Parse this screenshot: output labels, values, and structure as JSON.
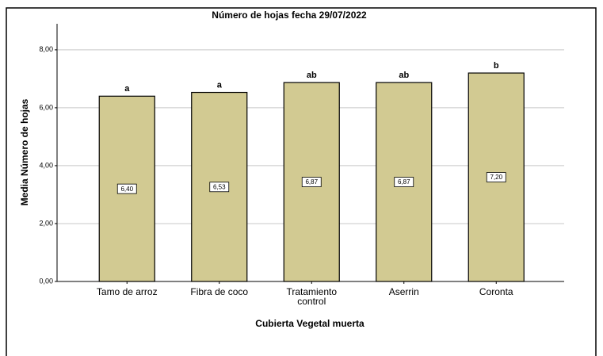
{
  "chart_data": {
    "type": "bar",
    "title": "Número de hojas fecha 29/07/2022",
    "x_label": "Cubierta Vegetal muerta",
    "y_label": "Media Número de hojas",
    "categories": [
      "Tamo de arroz",
      "Fibra de coco",
      "Tratamiento control",
      "Aserrin",
      "Coronta"
    ],
    "values": [
      6.4,
      6.53,
      6.87,
      6.87,
      7.2
    ],
    "value_labels": [
      "6,40",
      "6,53",
      "6,87",
      "6,87",
      "7,20"
    ],
    "annotations": [
      "a",
      "a",
      "ab",
      "ab",
      "b"
    ],
    "color": "#d2ca92",
    "ylim": [
      0,
      8.9
    ],
    "yticks": [
      {
        "value": 0,
        "label": "0,00"
      },
      {
        "value": 2,
        "label": "2,00"
      },
      {
        "value": 4,
        "label": "4,00"
      },
      {
        "value": 6,
        "label": "6,00"
      },
      {
        "value": 8,
        "label": "8,00"
      }
    ],
    "grid": true
  }
}
